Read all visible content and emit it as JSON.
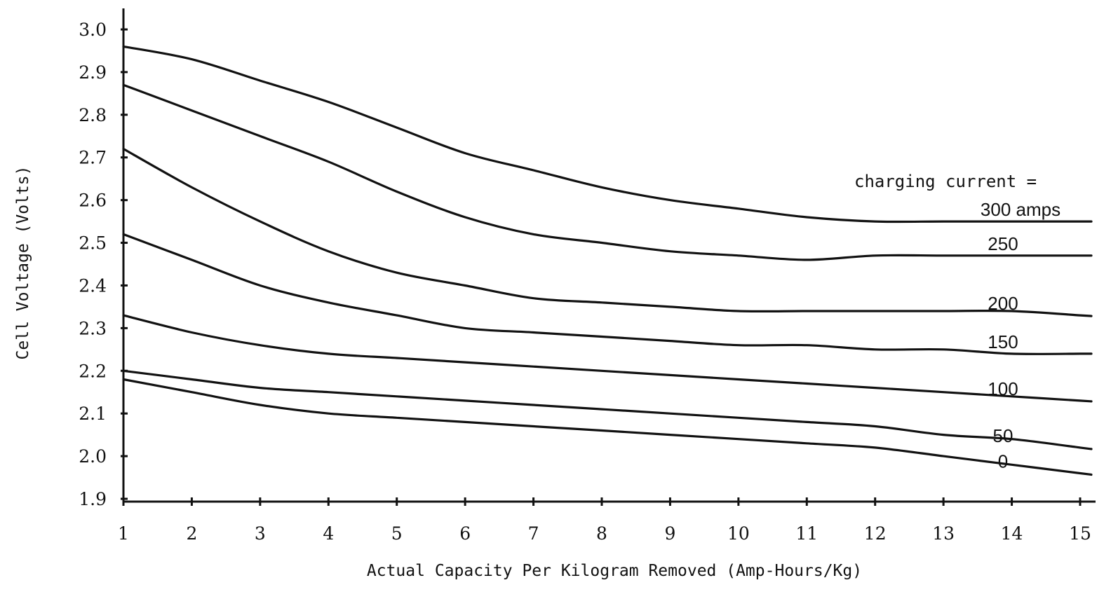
{
  "chart_data": {
    "type": "line",
    "xlabel": "Actual Capacity Per Kilogram Removed (Amp-Hours/Kg)",
    "ylabel": "Cell Voltage (Volts)",
    "legend_title": "charging current =",
    "xlim": [
      1,
      15
    ],
    "ylim": [
      1.9,
      3.0
    ],
    "xticks": [
      1,
      2,
      3,
      4,
      5,
      6,
      7,
      8,
      9,
      10,
      11,
      12,
      13,
      14,
      15
    ],
    "yticks": [
      1.9,
      2.0,
      2.1,
      2.2,
      2.3,
      2.4,
      2.5,
      2.6,
      2.7,
      2.8,
      2.9,
      3.0
    ],
    "grid": false,
    "legend_placement": "inline-right",
    "series": [
      {
        "name": "300 amps",
        "x": [
          1,
          2,
          3,
          4,
          5,
          6,
          7,
          8,
          9,
          10,
          11,
          12,
          13,
          14,
          15
        ],
        "values": [
          2.96,
          2.93,
          2.88,
          2.83,
          2.77,
          2.71,
          2.67,
          2.63,
          2.6,
          2.58,
          2.56,
          2.55,
          2.55,
          2.55,
          2.55
        ]
      },
      {
        "name": "250",
        "x": [
          1,
          2,
          3,
          4,
          5,
          6,
          7,
          8,
          9,
          10,
          11,
          12,
          13,
          14,
          15
        ],
        "values": [
          2.87,
          2.81,
          2.75,
          2.69,
          2.62,
          2.56,
          2.52,
          2.5,
          2.48,
          2.47,
          2.46,
          2.47,
          2.47,
          2.47,
          2.47
        ]
      },
      {
        "name": "200",
        "x": [
          1,
          2,
          3,
          4,
          5,
          6,
          7,
          8,
          9,
          10,
          11,
          12,
          13,
          14,
          15
        ],
        "values": [
          2.72,
          2.63,
          2.55,
          2.48,
          2.43,
          2.4,
          2.37,
          2.36,
          2.35,
          2.34,
          2.34,
          2.34,
          2.34,
          2.34,
          2.33
        ]
      },
      {
        "name": "150",
        "x": [
          1,
          2,
          3,
          4,
          5,
          6,
          7,
          8,
          9,
          10,
          11,
          12,
          13,
          14,
          15
        ],
        "values": [
          2.52,
          2.46,
          2.4,
          2.36,
          2.33,
          2.3,
          2.29,
          2.28,
          2.27,
          2.26,
          2.26,
          2.25,
          2.25,
          2.24,
          2.24
        ]
      },
      {
        "name": "100",
        "x": [
          1,
          2,
          3,
          4,
          5,
          6,
          7,
          8,
          9,
          10,
          11,
          12,
          13,
          14,
          15
        ],
        "values": [
          2.33,
          2.29,
          2.26,
          2.24,
          2.23,
          2.22,
          2.21,
          2.2,
          2.19,
          2.18,
          2.17,
          2.16,
          2.15,
          2.14,
          2.13
        ]
      },
      {
        "name": "50",
        "x": [
          1,
          2,
          3,
          4,
          5,
          6,
          7,
          8,
          9,
          10,
          11,
          12,
          13,
          14,
          15
        ],
        "values": [
          2.2,
          2.18,
          2.16,
          2.15,
          2.14,
          2.13,
          2.12,
          2.11,
          2.1,
          2.09,
          2.08,
          2.07,
          2.05,
          2.04,
          2.02
        ]
      },
      {
        "name": "0",
        "x": [
          1,
          2,
          3,
          4,
          5,
          6,
          7,
          8,
          9,
          10,
          11,
          12,
          13,
          14,
          15
        ],
        "values": [
          2.18,
          2.15,
          2.12,
          2.1,
          2.09,
          2.08,
          2.07,
          2.06,
          2.05,
          2.04,
          2.03,
          2.02,
          2.0,
          1.98,
          1.96
        ]
      }
    ]
  }
}
